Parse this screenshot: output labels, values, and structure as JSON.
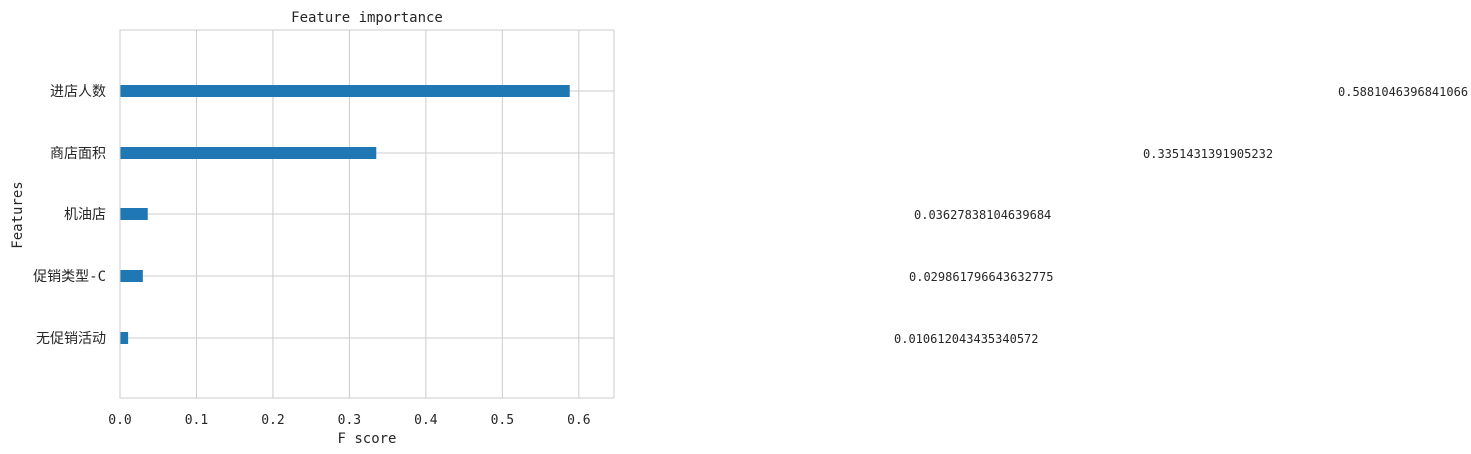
{
  "chart_data": {
    "type": "bar",
    "orientation": "horizontal",
    "title": "Feature importance",
    "xlabel": "F score",
    "ylabel": "Features",
    "categories": [
      "进店人数",
      "商店面积",
      "机油店",
      "促销类型-C",
      "无促销活动"
    ],
    "values": [
      0.5881046396841066,
      0.3351431391905232,
      0.03627838104639684,
      0.029861796643632775,
      0.010612043435340572
    ],
    "value_labels": [
      "0.5881046396841066",
      "0.3351431391905232",
      "0.03627838104639684",
      "0.029861796643632775",
      "0.010612043435340572"
    ],
    "xlim": [
      0.0,
      0.646
    ],
    "xticks": [
      0.0,
      0.1,
      0.2,
      0.3,
      0.4,
      0.5,
      0.6
    ],
    "xtick_labels": [
      "0.0",
      "0.1",
      "0.2",
      "0.3",
      "0.4",
      "0.5",
      "0.6"
    ],
    "grid": true,
    "bar_color": "#1f77b4",
    "grid_color": "#cccccc",
    "spine_color": "#cccccc"
  }
}
